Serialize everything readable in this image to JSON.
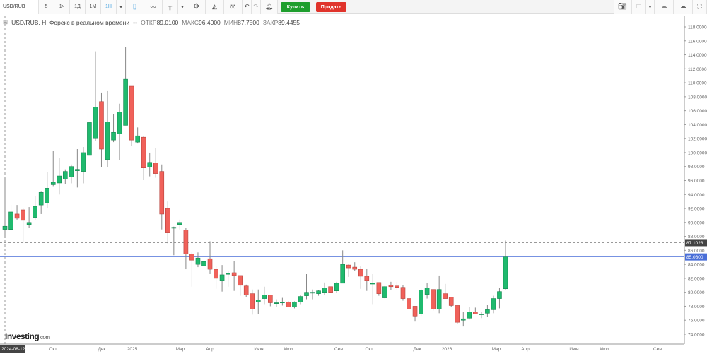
{
  "toolbar": {
    "symbol": "USD/RUB",
    "intervals": [
      "5",
      "1ч",
      "1Д",
      "1М",
      "1Н"
    ],
    "active_interval": "1Н",
    "buy_label": "Купить",
    "sell_label": "Продать",
    "icons": [
      "chevron-down-icon",
      "candlestick-icon",
      "line-chart-icon",
      "indicators-icon",
      "chevron-down-icon",
      "gear-icon",
      "area-chart-icon",
      "scales-icon",
      "undo-icon",
      "redo-icon",
      "alert-bell-icon"
    ],
    "right_icons": [
      "camera-icon",
      "square-icon",
      "chevron-down-icon",
      "cloud-download-icon",
      "cloud-upload-icon",
      "fullscreen-icon"
    ]
  },
  "legend": {
    "title": "USD/RUB, H, Форекс в реальном времени",
    "open_label": "ОТКР",
    "open": "89.0100",
    "high_label": "МАКС",
    "high": "96.4000",
    "low_label": "МИН",
    "low": "87.7500",
    "close_label": "ЗАКР",
    "close": "89.4455"
  },
  "logo": {
    "main": "Investing",
    "suffix": ".com"
  },
  "colors": {
    "up": "#1fba6e",
    "down": "#f0615a",
    "wick": "#888888",
    "current_price": "#4a6fd8",
    "crosshair": "#999999"
  },
  "chart_data": {
    "type": "candlestick",
    "interval": "weekly",
    "ylim": [
      73,
      119
    ],
    "yticks": [
      "74.0000",
      "76.0000",
      "78.0000",
      "80.0000",
      "82.0000",
      "84.0000",
      "86.0000",
      "88.0000",
      "90.0000",
      "92.0000",
      "94.0000",
      "96.0000",
      "98.0000",
      "100.0000",
      "102.0000",
      "104.0000",
      "106.0000",
      "108.0000",
      "110.0000",
      "112.0000",
      "114.0000",
      "116.0000",
      "118.0000"
    ],
    "xticks": [
      "Окт",
      "Дек",
      "2025",
      "Мар",
      "Апр",
      "Июн",
      "Июл",
      "Сен",
      "Окт",
      "Дек",
      "2026",
      "Мар",
      "Апр",
      "Июн",
      "Июл",
      "Сен"
    ],
    "crosshair_date": "2024-08-12",
    "crosshair_price": "87.1023",
    "current_price": "85.0600",
    "grid": false,
    "ohlc": [
      [
        89.01,
        96.4,
        87.75,
        89.45
      ],
      [
        89.0,
        92.5,
        88.9,
        91.5
      ],
      [
        91.2,
        92.5,
        90.4,
        90.6
      ],
      [
        91.8,
        92.0,
        87.1,
        90.3
      ],
      [
        89.7,
        92.2,
        89.2,
        90.0
      ],
      [
        90.7,
        93.8,
        90.4,
        92.3
      ],
      [
        92.5,
        94.4,
        91.2,
        94.3
      ],
      [
        92.8,
        97.2,
        92.0,
        94.9
      ],
      [
        95.4,
        100.3,
        95.2,
        95.75
      ],
      [
        95.65,
        99.2,
        94.0,
        96.65
      ],
      [
        96.2,
        97.6,
        95.5,
        97.3
      ],
      [
        96.5,
        98.3,
        95.6,
        98.0
      ],
      [
        97.4,
        100.5,
        95.0,
        97.6
      ],
      [
        97.3,
        100.8,
        95.6,
        100.0
      ],
      [
        99.6,
        104.3,
        99.6,
        104.3
      ],
      [
        102.0,
        114.5,
        101.7,
        106.5
      ],
      [
        107.3,
        108.6,
        97.9,
        100.5
      ],
      [
        99.0,
        108.8,
        97.9,
        104.4
      ],
      [
        101.8,
        105.5,
        101.5,
        102.9
      ],
      [
        102.7,
        107.0,
        98.9,
        105.8
      ],
      [
        103.9,
        115.1,
        103.9,
        110.5
      ],
      [
        109.5,
        109.5,
        101.0,
        101.8
      ],
      [
        101.5,
        103.6,
        101.3,
        102.4
      ],
      [
        102.2,
        102.4,
        96.05,
        97.8
      ],
      [
        97.9,
        100.0,
        96.6,
        98.6
      ],
      [
        98.5,
        100.7,
        96.4,
        97.0
      ],
      [
        97.3,
        98.3,
        89.0,
        91.2
      ],
      [
        92.0,
        93.0,
        87.0,
        88.5
      ],
      [
        89.3,
        89.4,
        85.3,
        89.3
      ],
      [
        89.7,
        90.4,
        89.0,
        90.0
      ],
      [
        88.9,
        89.2,
        83.3,
        85.5
      ],
      [
        85.5,
        85.8,
        80.8,
        84.6
      ],
      [
        84.0,
        85.7,
        83.6,
        84.9
      ],
      [
        83.8,
        86.2,
        83.0,
        84.4
      ],
      [
        84.8,
        87.3,
        82.6,
        83.3
      ],
      [
        83.3,
        83.8,
        80.5,
        82.0
      ],
      [
        81.7,
        83.9,
        80.1,
        82.5
      ],
      [
        82.7,
        83.0,
        80.8,
        82.7
      ],
      [
        82.8,
        84.5,
        80.2,
        82.4
      ],
      [
        82.4,
        82.4,
        79.5,
        81.0
      ],
      [
        80.9,
        81.1,
        79.3,
        79.6
      ],
      [
        79.8,
        80.4,
        76.8,
        77.6
      ],
      [
        78.6,
        80.4,
        76.9,
        78.9
      ],
      [
        79.1,
        80.8,
        78.3,
        79.6
      ],
      [
        79.6,
        79.6,
        78.0,
        78.5
      ],
      [
        78.5,
        79.0,
        77.9,
        78.5
      ],
      [
        78.6,
        79.2,
        78.1,
        78.6
      ],
      [
        78.6,
        78.7,
        77.9,
        77.9
      ],
      [
        77.9,
        78.7,
        77.7,
        78.6
      ],
      [
        78.6,
        79.6,
        78.3,
        79.4
      ],
      [
        79.5,
        82.6,
        79.0,
        80.0
      ],
      [
        80.0,
        80.4,
        79.0,
        80.0
      ],
      [
        79.8,
        80.3,
        79.5,
        80.2
      ],
      [
        80.0,
        81.4,
        79.6,
        80.6
      ],
      [
        80.8,
        80.8,
        79.9,
        80.0
      ],
      [
        80.2,
        81.5,
        79.9,
        81.3
      ],
      [
        81.3,
        86.0,
        81.3,
        84.0
      ],
      [
        83.9,
        84.0,
        82.2,
        83.5
      ],
      [
        83.6,
        84.3,
        83.1,
        83.3
      ],
      [
        83.3,
        83.7,
        80.5,
        82.3
      ],
      [
        82.3,
        83.4,
        80.2,
        81.7
      ],
      [
        81.3,
        82.6,
        78.3,
        81.3
      ],
      [
        81.4,
        81.4,
        79.5,
        79.8
      ],
      [
        79.2,
        80.9,
        79.1,
        80.8
      ],
      [
        81.0,
        81.5,
        80.3,
        80.8
      ],
      [
        80.9,
        81.5,
        80.3,
        80.7
      ],
      [
        80.7,
        81.0,
        78.8,
        79.1
      ],
      [
        79.1,
        79.2,
        77.4,
        77.6
      ],
      [
        78.0,
        78.0,
        75.8,
        76.6
      ],
      [
        76.9,
        80.5,
        76.6,
        80.3
      ],
      [
        79.7,
        81.3,
        79.1,
        80.6
      ],
      [
        80.4,
        80.4,
        77.4,
        77.6
      ],
      [
        77.6,
        82.4,
        77.0,
        80.4
      ],
      [
        79.8,
        81.2,
        79.1,
        79.1
      ],
      [
        79.3,
        79.3,
        77.9,
        78.1
      ],
      [
        78.1,
        78.1,
        75.5,
        75.7
      ],
      [
        76.0,
        77.2,
        75.1,
        76.2
      ],
      [
        76.3,
        77.9,
        76.1,
        77.2
      ],
      [
        77.2,
        77.8,
        76.9,
        76.9
      ],
      [
        76.9,
        77.2,
        76.3,
        76.9
      ],
      [
        77.0,
        78.2,
        76.5,
        77.5
      ],
      [
        77.5,
        79.5,
        77.0,
        79.1
      ],
      [
        79.1,
        80.6,
        77.7,
        80.1
      ],
      [
        80.5,
        87.4,
        80.4,
        85.06
      ]
    ]
  }
}
